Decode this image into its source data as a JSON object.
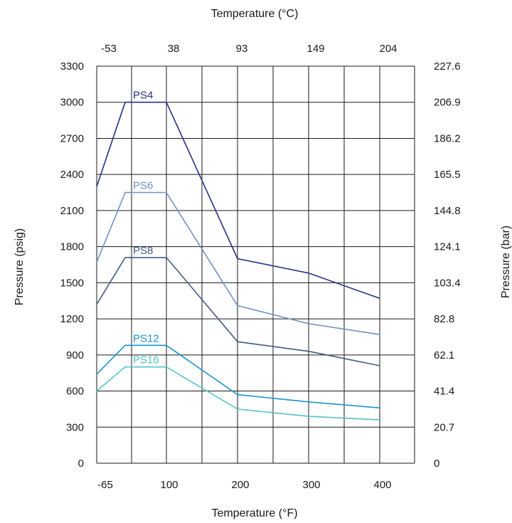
{
  "chart_data": {
    "type": "line",
    "x_top_label": "Temperature (°C)",
    "x_bottom_label": "Temperature (°F)",
    "y_left_label": "Pressure (psig)",
    "y_right_label": "Pressure (bar)",
    "x_bottom_ticks": [
      "-65",
      "100",
      "200",
      "300",
      "400"
    ],
    "x_top_ticks": [
      "-53",
      "38",
      "93",
      "149",
      "204"
    ],
    "y_left_ticks": [
      "0",
      "300",
      "600",
      "900",
      "1200",
      "1500",
      "1800",
      "2100",
      "2400",
      "2700",
      "3000",
      "3300"
    ],
    "y_right_ticks": [
      "0",
      "20.7",
      "41.4",
      "62.1",
      "82.8",
      "103.4",
      "124.1",
      "144.8",
      "165.5",
      "186.2",
      "206.9",
      "227.6"
    ],
    "ylim": [
      0,
      3300
    ],
    "grid": true,
    "series": [
      {
        "name": "PS4",
        "color": "#2b2f86",
        "x": [
          -65,
          -20,
          100,
          200,
          300,
          400
        ],
        "y": [
          2300,
          3000,
          3000,
          1700,
          1580,
          1370
        ]
      },
      {
        "name": "PS6",
        "color": "#7190c8",
        "x": [
          -65,
          -20,
          100,
          200,
          300,
          400
        ],
        "y": [
          1670,
          2250,
          2250,
          1310,
          1160,
          1070
        ]
      },
      {
        "name": "PS8",
        "color": "#445a86",
        "x": [
          -65,
          -20,
          100,
          200,
          300,
          400
        ],
        "y": [
          1320,
          1710,
          1710,
          1010,
          930,
          810
        ]
      },
      {
        "name": "PS12",
        "color": "#1a93cf",
        "x": [
          -65,
          -20,
          100,
          200,
          300,
          400
        ],
        "y": [
          740,
          980,
          980,
          570,
          510,
          460
        ]
      },
      {
        "name": "PS16",
        "color": "#57c1c8",
        "x": [
          -65,
          -20,
          100,
          200,
          300,
          400
        ],
        "y": [
          600,
          800,
          800,
          450,
          390,
          360
        ]
      }
    ]
  }
}
